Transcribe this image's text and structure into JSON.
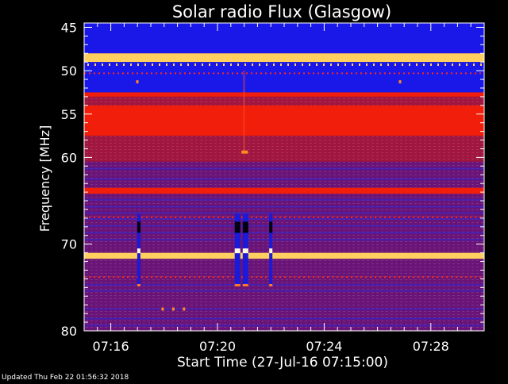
{
  "chart_data": {
    "type": "heatmap",
    "title": "Solar radio Flux (Glasgow)",
    "xlabel": "Start Time (27-Jul-16 07:15:00)",
    "ylabel": "Frequency [MHz]",
    "x_tick_labels": [
      "07:16",
      "07:20",
      "07:24",
      "07:28"
    ],
    "y_tick_labels": [
      "45",
      "50",
      "55",
      "60",
      "70",
      "80"
    ],
    "y_tick_values": [
      45,
      50,
      55,
      60,
      70,
      80
    ],
    "y_minor_values": [
      46,
      47,
      48,
      49,
      51,
      52,
      53,
      54,
      56,
      57,
      58,
      59,
      61,
      62,
      63,
      64,
      65,
      66,
      67,
      68,
      69,
      71,
      72,
      73,
      74,
      75,
      76,
      77,
      78,
      79
    ],
    "x_range": [
      "07:15:00",
      "07:30:00"
    ],
    "y_range_mhz": [
      44.5,
      80
    ],
    "x_ticks_minutes": [
      1,
      5,
      9,
      13
    ],
    "x_minor_minutes": [
      0.5,
      1.5,
      2,
      2.5,
      3,
      3.5,
      4,
      4.5,
      5.5,
      6,
      6.5,
      7,
      7.5,
      8,
      8.5,
      9.5,
      10,
      10.5,
      11,
      11.5,
      12,
      12.5,
      13.5,
      14,
      14.5
    ],
    "intensity_bands": [
      {
        "from_mhz": 44.5,
        "to_mhz": 48.0,
        "level": "low"
      },
      {
        "from_mhz": 48.0,
        "to_mhz": 49.0,
        "level": "saturated"
      },
      {
        "from_mhz": 49.0,
        "to_mhz": 52.5,
        "level": "low"
      },
      {
        "from_mhz": 52.5,
        "to_mhz": 53.0,
        "level": "high"
      },
      {
        "from_mhz": 53.0,
        "to_mhz": 54.0,
        "level": "medium"
      },
      {
        "from_mhz": 54.0,
        "to_mhz": 57.5,
        "level": "high"
      },
      {
        "from_mhz": 57.5,
        "to_mhz": 60.5,
        "level": "medium"
      },
      {
        "from_mhz": 60.5,
        "to_mhz": 63.5,
        "level": "mixed"
      },
      {
        "from_mhz": 63.5,
        "to_mhz": 64.2,
        "level": "high"
      },
      {
        "from_mhz": 64.2,
        "to_mhz": 71.0,
        "level": "mixed"
      },
      {
        "from_mhz": 71.0,
        "to_mhz": 71.7,
        "level": "saturated"
      },
      {
        "from_mhz": 71.7,
        "to_mhz": 80.0,
        "level": "mixed"
      }
    ],
    "bursts": [
      {
        "time_minutes": 2.05,
        "from_mhz": 66.5,
        "to_mhz": 74.8
      },
      {
        "time_minutes": 5.75,
        "from_mhz": 66.5,
        "to_mhz": 74.8
      },
      {
        "time_minutes": 6.05,
        "from_mhz": 66.5,
        "to_mhz": 74.8
      },
      {
        "time_minutes": 7.0,
        "from_mhz": 66.5,
        "to_mhz": 74.8
      }
    ],
    "colors": {
      "low": "#1a18e8",
      "medium": "#a01640",
      "high": "#f01e0a",
      "mixed": "#6a1478",
      "saturated": "#ffd060"
    }
  },
  "footer": {
    "updated": "Updated Thu Feb 22 01:56:32 2018"
  }
}
